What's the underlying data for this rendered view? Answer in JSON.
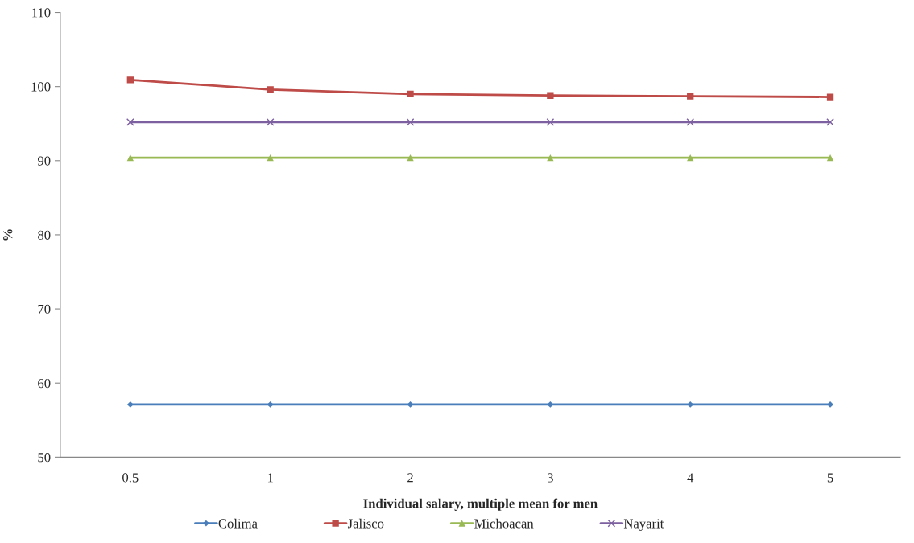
{
  "chart_data": {
    "type": "line",
    "xlabel": "Individual salary, multiple mean for men",
    "ylabel": "%",
    "categories": [
      "0.5",
      "1",
      "2",
      "3",
      "4",
      "5"
    ],
    "series": [
      {
        "name": "Colima",
        "color": "#4a7ebb",
        "marker": "diamond",
        "values": [
          57.1,
          57.1,
          57.1,
          57.1,
          57.1,
          57.1
        ]
      },
      {
        "name": "Jalisco",
        "color": "#be4b48",
        "marker": "square",
        "values": [
          100.9,
          99.6,
          99.0,
          98.8,
          98.7,
          98.6
        ]
      },
      {
        "name": "Michoacan",
        "color": "#98b954",
        "marker": "triangle",
        "values": [
          90.4,
          90.4,
          90.4,
          90.4,
          90.4,
          90.4
        ]
      },
      {
        "name": "Nayarit",
        "color": "#7d60a0",
        "marker": "cross",
        "values": [
          95.2,
          95.2,
          95.2,
          95.2,
          95.2,
          95.2
        ]
      }
    ],
    "ylim": [
      50,
      110
    ],
    "yticks": [
      50,
      60,
      70,
      80,
      90,
      100,
      110
    ],
    "grid": false,
    "legend": "bottom",
    "line_style": "solid"
  }
}
